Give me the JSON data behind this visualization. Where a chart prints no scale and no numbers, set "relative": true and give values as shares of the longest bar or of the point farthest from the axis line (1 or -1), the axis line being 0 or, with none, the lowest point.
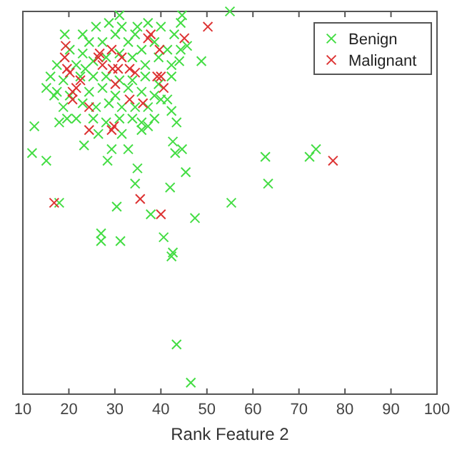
{
  "chart_data": {
    "type": "scatter",
    "xlabel": "Rank Feature 2",
    "relative": true,
    "xlim": [
      10,
      100
    ],
    "xticks": [
      10,
      20,
      30,
      40,
      50,
      60,
      70,
      80,
      90,
      100
    ],
    "legend": "top right",
    "marker": "cross",
    "grid": false,
    "series": [
      {
        "name": "Benign",
        "color": "#44dd44",
        "x": [
          31.0,
          19.1,
          34.9,
          44.3,
          44.6,
          55.0,
          48.8,
          12.5,
          12.0,
          15.1,
          17.9,
          23.3,
          28.4,
          35.8,
          34.9,
          34.4,
          42.3,
          43.4,
          42.6,
          43.1,
          44.6,
          45.4,
          42.0,
          30.4,
          37.8,
          47.4,
          17.9,
          27.0,
          27.0,
          31.2,
          40.6,
          42.6,
          42.3,
          43.4,
          46.5,
          62.7,
          72.3,
          73.7,
          63.3,
          55.3,
          23.0,
          25.9,
          28.7,
          31.5,
          34.4,
          37.2,
          40.0,
          42.9,
          20.2,
          23.0,
          24.4,
          27.3,
          30.1,
          32.9,
          35.8,
          38.6,
          41.4,
          44.3,
          17.4,
          21.6,
          23.6,
          25.3,
          28.1,
          31.0,
          33.8,
          36.6,
          39.5,
          42.3,
          16.0,
          18.8,
          22.5,
          25.3,
          28.1,
          31.0,
          33.8,
          36.6,
          39.5,
          42.3,
          17.4,
          20.2,
          24.4,
          27.3,
          30.1,
          32.9,
          35.8,
          38.6,
          41.4,
          18.8,
          23.0,
          25.9,
          28.7,
          31.5,
          34.4,
          37.2,
          40.0,
          21.6,
          25.3,
          28.1,
          31.0,
          33.8,
          35.8,
          38.6,
          19.6,
          26.4,
          31.5,
          37.2,
          29.3,
          32.9,
          16.8,
          15.1,
          44.0,
          45.7
        ],
        "values": [
          0.99,
          0.94,
          0.96,
          0.97,
          0.99,
          1.0,
          0.87,
          0.7,
          0.63,
          0.61,
          0.71,
          0.65,
          0.61,
          0.69,
          0.59,
          0.55,
          0.74,
          0.71,
          0.66,
          0.63,
          0.64,
          0.58,
          0.54,
          0.49,
          0.47,
          0.46,
          0.5,
          0.42,
          0.4,
          0.4,
          0.41,
          0.37,
          0.36,
          0.13,
          0.03,
          0.62,
          0.62,
          0.64,
          0.55,
          0.5,
          0.94,
          0.96,
          0.97,
          0.96,
          0.94,
          0.97,
          0.96,
          0.94,
          0.9,
          0.89,
          0.92,
          0.92,
          0.94,
          0.92,
          0.9,
          0.92,
          0.9,
          0.9,
          0.86,
          0.86,
          0.85,
          0.87,
          0.88,
          0.89,
          0.88,
          0.86,
          0.88,
          0.86,
          0.83,
          0.82,
          0.83,
          0.83,
          0.83,
          0.82,
          0.82,
          0.83,
          0.81,
          0.83,
          0.79,
          0.78,
          0.79,
          0.8,
          0.78,
          0.8,
          0.79,
          0.78,
          0.77,
          0.75,
          0.76,
          0.75,
          0.76,
          0.75,
          0.75,
          0.75,
          0.77,
          0.72,
          0.72,
          0.71,
          0.72,
          0.72,
          0.71,
          0.72,
          0.72,
          0.68,
          0.68,
          0.7,
          0.64,
          0.64,
          0.78,
          0.8,
          0.87,
          0.91
        ]
      },
      {
        "name": "Malignant",
        "color": "#dd3333",
        "x": [
          19.3,
          19.1,
          19.6,
          20.2,
          20.8,
          20.8,
          21.6,
          24.4,
          24.4,
          26.4,
          26.7,
          27.3,
          29.3,
          29.5,
          30.1,
          30.7,
          31.5,
          33.2,
          34.4,
          33.2,
          36.1,
          37.2,
          37.8,
          39.7,
          39.2,
          40.0,
          40.6,
          45.1,
          29.8,
          22.5,
          50.2,
          16.8,
          35.5,
          40.0,
          77.4,
          29.3
        ],
        "values": [
          0.91,
          0.88,
          0.85,
          0.84,
          0.77,
          0.79,
          0.8,
          0.75,
          0.69,
          0.88,
          0.89,
          0.86,
          0.9,
          0.85,
          0.81,
          0.85,
          0.88,
          0.85,
          0.84,
          0.77,
          0.76,
          0.93,
          0.94,
          0.9,
          0.83,
          0.83,
          0.8,
          0.93,
          0.7,
          0.82,
          0.96,
          0.5,
          0.51,
          0.47,
          0.61,
          0.69
        ]
      }
    ]
  }
}
